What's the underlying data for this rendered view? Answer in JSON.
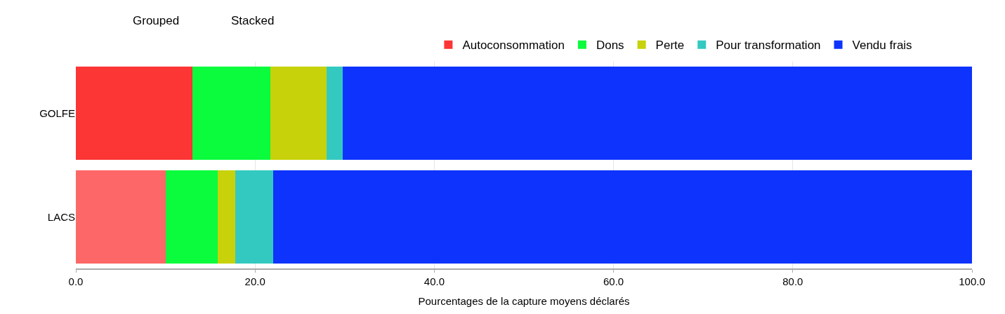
{
  "chart_data": {
    "type": "bar",
    "orientation": "horizontal",
    "stacked": true,
    "xlabel": "Pourcentages de la capture moyens déclarés",
    "categories": [
      "GOLFE",
      "LACS"
    ],
    "series": [
      {
        "name": "Autoconsommation",
        "colors": [
          "#fc3535",
          "#fd6767"
        ],
        "values": [
          13.0,
          10.0
        ]
      },
      {
        "name": "Dons",
        "color": "#0afc3c",
        "values": [
          8.7,
          5.8
        ]
      },
      {
        "name": "Perte",
        "color": "#c8d20a",
        "values": [
          6.3,
          2.0
        ]
      },
      {
        "name": "Pour transformation",
        "color": "#33c9c0",
        "values": [
          1.8,
          4.2
        ]
      },
      {
        "name": "Vendu frais",
        "color": "#0d33fc",
        "values": [
          70.2,
          78.0
        ]
      }
    ],
    "xlim": [
      0,
      100
    ],
    "xticks": [
      {
        "value": 0,
        "label": "0.0"
      },
      {
        "value": 20,
        "label": "20.0"
      },
      {
        "value": 40,
        "label": "40.0"
      },
      {
        "value": 60,
        "label": "60.0"
      },
      {
        "value": 80,
        "label": "80.0"
      },
      {
        "value": 100,
        "label": "100.0"
      }
    ],
    "grid": "x",
    "legend": "top",
    "annotations": [
      "Grouped",
      "Stacked"
    ]
  }
}
